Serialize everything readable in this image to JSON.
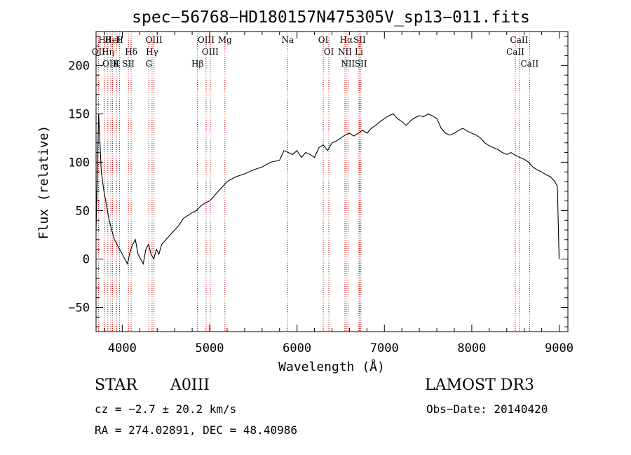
{
  "chart_data": {
    "type": "line",
    "title": "spec−56768−HD180157N475305V_sp13−011.fits",
    "xlabel": "Wavelength (Å)",
    "ylabel": "Flux (relative)",
    "xlim": [
      3700,
      9100
    ],
    "ylim": [
      -75,
      235
    ],
    "x_ticks": [
      4000,
      5000,
      6000,
      7000,
      8000,
      9000
    ],
    "x_tick_labels": [
      "4000",
      "5000",
      "6000",
      "7000",
      "8000",
      "9000"
    ],
    "y_ticks": [
      -50,
      0,
      50,
      100,
      150,
      200
    ],
    "y_tick_labels": [
      "−50",
      "0",
      "50",
      "100",
      "150",
      "200"
    ],
    "grid": false,
    "series": [
      {
        "name": "Flux",
        "x": [
          3700,
          3730,
          3760,
          3790,
          3820,
          3850,
          3880,
          3910,
          3940,
          3970,
          4000,
          4030,
          4060,
          4090,
          4120,
          4150,
          4180,
          4210,
          4240,
          4270,
          4300,
          4330,
          4360,
          4390,
          4420,
          4450,
          4500,
          4550,
          4600,
          4650,
          4700,
          4750,
          4800,
          4850,
          4900,
          4950,
          5000,
          5050,
          5100,
          5150,
          5200,
          5300,
          5400,
          5500,
          5600,
          5700,
          5800,
          5850,
          5900,
          5950,
          6000,
          6050,
          6100,
          6150,
          6200,
          6250,
          6300,
          6350,
          6400,
          6450,
          6500,
          6550,
          6600,
          6650,
          6700,
          6750,
          6800,
          6850,
          6900,
          6950,
          7000,
          7050,
          7100,
          7150,
          7200,
          7250,
          7300,
          7350,
          7400,
          7450,
          7500,
          7550,
          7600,
          7650,
          7700,
          7750,
          7800,
          7850,
          7900,
          7950,
          8000,
          8050,
          8100,
          8150,
          8200,
          8250,
          8300,
          8350,
          8400,
          8450,
          8500,
          8550,
          8600,
          8650,
          8700,
          8750,
          8800,
          8850,
          8900,
          8950,
          8980,
          9000
        ],
        "y": [
          30,
          150,
          90,
          70,
          55,
          40,
          30,
          20,
          15,
          10,
          5,
          0,
          -5,
          8,
          15,
          20,
          5,
          0,
          -5,
          10,
          15,
          5,
          0,
          10,
          5,
          15,
          20,
          25,
          30,
          35,
          42,
          45,
          48,
          50,
          55,
          58,
          60,
          65,
          70,
          75,
          80,
          85,
          88,
          92,
          95,
          100,
          102,
          112,
          110,
          108,
          112,
          105,
          110,
          108,
          105,
          115,
          118,
          112,
          120,
          122,
          125,
          128,
          130,
          127,
          130,
          133,
          130,
          135,
          138,
          142,
          145,
          148,
          150,
          145,
          142,
          138,
          143,
          146,
          148,
          147,
          150,
          148,
          145,
          135,
          130,
          128,
          130,
          133,
          135,
          132,
          130,
          128,
          125,
          120,
          117,
          115,
          113,
          110,
          108,
          110,
          107,
          105,
          103,
          100,
          95,
          92,
          90,
          87,
          85,
          80,
          75,
          0
        ]
      }
    ],
    "line_markers": [
      {
        "label": "Hθ",
        "x": 3798
      },
      {
        "label": "OII",
        "x": 3727
      },
      {
        "label": "OIII",
        "x": 3869
      },
      {
        "label": "HeI",
        "x": 3889
      },
      {
        "label": "Hη",
        "x": 3835
      },
      {
        "label": "K",
        "x": 3934
      },
      {
        "label": "H",
        "x": 3969
      },
      {
        "label": "Hδ",
        "x": 4102
      },
      {
        "label": "SII",
        "x": 4070
      },
      {
        "label": "OIII",
        "x": 4363
      },
      {
        "label": "Hγ",
        "x": 4341
      },
      {
        "label": "G",
        "x": 4304
      },
      {
        "label": "OIII",
        "x": 4959
      },
      {
        "label": "OIII",
        "x": 5007
      },
      {
        "label": "Hβ",
        "x": 4861
      },
      {
        "label": "Mg",
        "x": 5175
      },
      {
        "label": "Na",
        "x": 5893
      },
      {
        "label": "OI",
        "x": 6300
      },
      {
        "label": "OI",
        "x": 6364
      },
      {
        "label": "Hα",
        "x": 6563
      },
      {
        "label": "NII",
        "x": 6548
      },
      {
        "label": "NII",
        "x": 6583
      },
      {
        "label": "SII",
        "x": 6716
      },
      {
        "label": "Li",
        "x": 6708
      },
      {
        "label": "SII",
        "x": 6731
      },
      {
        "label": "CaII",
        "x": 8542
      },
      {
        "label": "CaII",
        "x": 8498
      },
      {
        "label": "CaII",
        "x": 8662
      }
    ]
  },
  "info": {
    "object_class": "STAR",
    "subclass": "A0III",
    "survey": "LAMOST DR3",
    "cz": "cz = −2.7 ± 20.2 km/s",
    "obs_date": "Obs−Date: 20140420",
    "radec": "RA = 274.02891, DEC =  48.40986"
  },
  "colors": {
    "axes": "#000000",
    "spectrum": "#000000",
    "line_markers": "#cc0000"
  }
}
